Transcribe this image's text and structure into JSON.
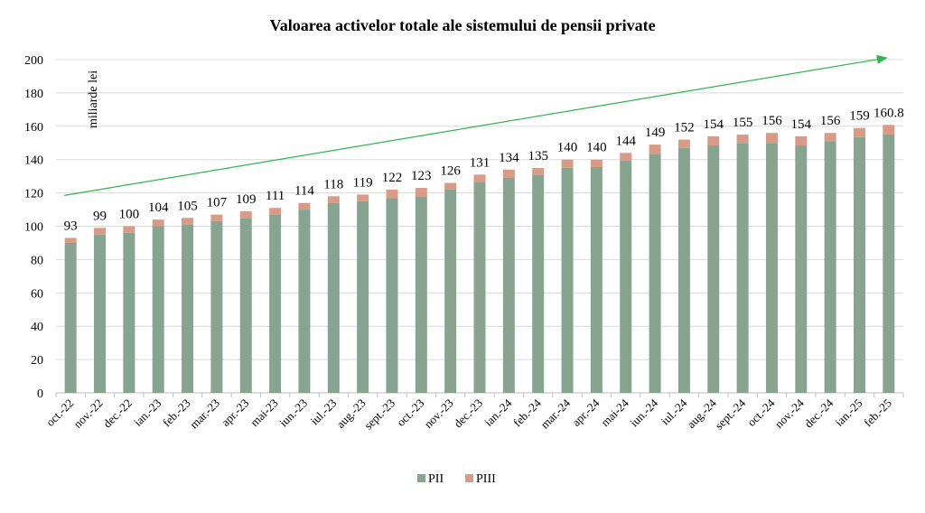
{
  "chart_data": {
    "type": "bar",
    "stacked": true,
    "title": "Valoarea activelor totale ale sistemului de pensii private",
    "ylabel": "miliarde lei",
    "xlabel": "",
    "ylim": [
      0,
      200
    ],
    "yticks": [
      0,
      20,
      40,
      60,
      80,
      100,
      120,
      140,
      160,
      180,
      200
    ],
    "grid": true,
    "legend_position": "bottom",
    "categories": [
      "oct.-22",
      "nov.-22",
      "dec.-22",
      "ian.-23",
      "feb.-23",
      "mar.-23",
      "apr.-23",
      "mai-23",
      "iun.-23",
      "iul.-23",
      "aug.-23",
      "sept.-23",
      "oct.-23",
      "nov.-23",
      "dec.-23",
      "ian.-24",
      "feb.-24",
      "mar.-24",
      "apr.-24",
      "mai-24",
      "iun.-24",
      "iul.-24",
      "aug.-24",
      "sept.-24",
      "oct.-24",
      "nov.-24",
      "dec.-24",
      "ian.-25",
      "feb.-25"
    ],
    "series": [
      {
        "name": "PII",
        "color": "#87a491",
        "values": [
          90,
          95,
          96,
          100,
          101,
          103,
          105,
          107,
          110,
          114,
          115,
          117,
          118,
          122,
          126.5,
          129,
          131,
          135,
          135.5,
          139.5,
          143.5,
          147,
          148.5,
          150,
          150,
          148.5,
          151,
          153.5,
          155
        ]
      },
      {
        "name": "PIII",
        "color": "#d99a86",
        "values": [
          3,
          4,
          4,
          4,
          4,
          4,
          4,
          4,
          4,
          4,
          4,
          5,
          5,
          4,
          4.5,
          5,
          4,
          5,
          4.5,
          4.5,
          5.5,
          5,
          5.5,
          5,
          6,
          5.5,
          5,
          5.5,
          5.8
        ]
      }
    ],
    "total_labels": [
      "93",
      "99",
      "100",
      "104",
      "105",
      "107",
      "109",
      "111",
      "114",
      "118",
      "119",
      "122",
      "123",
      "126",
      "131",
      "134",
      "135",
      "140",
      "140",
      "144",
      "149",
      "152",
      "154",
      "155",
      "156",
      "154",
      "156",
      "159",
      "160.8"
    ],
    "trend_arrow": {
      "from": 118.5,
      "to": 201,
      "color": "#2db54d"
    }
  }
}
